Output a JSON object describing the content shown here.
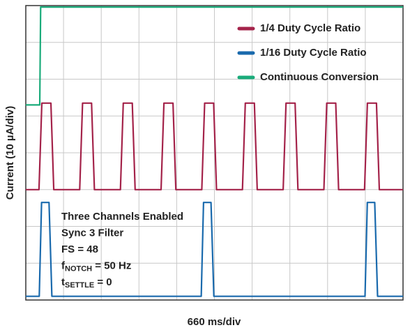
{
  "chart_data": {
    "type": "line",
    "xlabel": "660 ms/div",
    "ylabel": "Current (10 µA/div)",
    "xlim": [
      0,
      6600
    ],
    "ylim": [
      0,
      80
    ],
    "xticks": [
      0,
      660,
      1320,
      1980,
      2640,
      3300,
      3960,
      4620,
      5280,
      5940,
      6600
    ],
    "yticks": [
      0,
      10,
      20,
      30,
      40,
      50,
      60,
      70,
      80
    ],
    "grid": true,
    "legend": "upper right",
    "series": [
      {
        "name": "1/4 Duty Cycle Ratio",
        "color": "#a4234a",
        "x": [
          0,
          231,
          281,
          439,
          489,
          943,
          993,
          1151,
          1201,
          1655,
          1705,
          1863,
          1913,
          2367,
          2417,
          2575,
          2625,
          3079,
          3129,
          3287,
          3337,
          3791,
          3841,
          3999,
          4049,
          4503,
          4553,
          4711,
          4761,
          5215,
          5265,
          5423,
          5473,
          5927,
          5977,
          6135,
          6185,
          6600
        ],
        "values": [
          30,
          30,
          53.5,
          53.5,
          30,
          30,
          53.5,
          53.5,
          30,
          30,
          53.5,
          53.5,
          30,
          30,
          53.5,
          53.5,
          30,
          30,
          53.5,
          53.5,
          30,
          30,
          53.5,
          53.5,
          30,
          30,
          53.5,
          53.5,
          30,
          30,
          53.5,
          53.5,
          30,
          30,
          53.5,
          53.5,
          30,
          30
        ]
      },
      {
        "name": "1/16 Duty Cycle Ratio",
        "color": "#1a6aad",
        "x": [
          0,
          236,
          276,
          406,
          456,
          3070,
          3110,
          3240,
          3290,
          5935,
          5975,
          6105,
          6155,
          6600
        ],
        "values": [
          1,
          1,
          26.5,
          26.5,
          1,
          1,
          26.5,
          26.5,
          1,
          1,
          26.5,
          26.5,
          1,
          1
        ]
      },
      {
        "name": "Continuous Conversion",
        "color": "#1aab7a",
        "x": [
          0,
          244,
          260,
          6600
        ],
        "values": [
          53,
          53,
          79.6,
          79.6
        ]
      }
    ],
    "annotations": [
      "Three Channels Enabled",
      "Sync 3 Filter",
      "FS = 48",
      {
        "text": "f",
        "sub": "NOTCH",
        "rest": " = 50 Hz"
      },
      {
        "text": "t",
        "sub": "SETTLE",
        "rest": " = 0"
      }
    ]
  }
}
